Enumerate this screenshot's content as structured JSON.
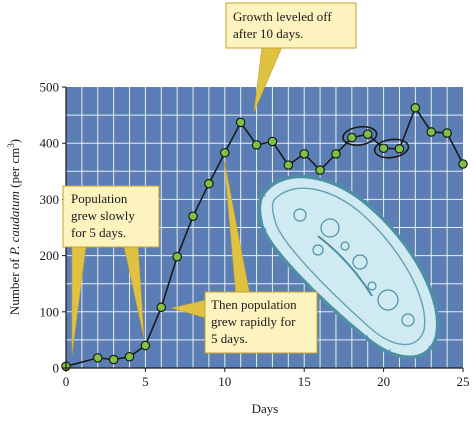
{
  "colors": {
    "plot_bg": "#5b7fb5",
    "grid": "#ffffff",
    "line": "#1a1a1a",
    "marker_fill": "#7ec242",
    "marker_stroke": "#1a1a1a",
    "callout_bg": "#fcf3bf",
    "callout_border": "#c8a22a",
    "callout_pointer": "#e0c243",
    "paramecium_body": "#cfeaf0",
    "paramecium_edge": "#4e8fa6"
  },
  "callouts": {
    "top": {
      "line1": "Growth leveled off",
      "line2": "after 10 days."
    },
    "left": {
      "line1": "Population",
      "line2": "grew slowly",
      "line3": "for 5 days."
    },
    "bottom": {
      "line1": "Then population",
      "line2": "grew rapidly for",
      "line3": "5 days."
    }
  },
  "chart_data": {
    "type": "line",
    "xlabel": "Days",
    "ylabel_main": "Number of ",
    "ylabel_species": "P. caudatum",
    "ylabel_unit": " (per cm",
    "ylabel_sup": "3",
    "ylabel_close": ")",
    "xlim": [
      0,
      25
    ],
    "ylim": [
      0,
      500
    ],
    "xticks": [
      "0",
      "5",
      "10",
      "15",
      "20",
      "25"
    ],
    "yticks": [
      "0",
      "100",
      "200",
      "300",
      "400",
      "500"
    ],
    "grid": true,
    "x": [
      0,
      2,
      3,
      4,
      5,
      6,
      7,
      8,
      9,
      10,
      11,
      12,
      13,
      14,
      15,
      16,
      17,
      18,
      19,
      20,
      21,
      22,
      23,
      24,
      25
    ],
    "y": [
      3,
      18,
      15,
      20,
      40,
      108,
      198,
      270,
      328,
      383,
      437,
      397,
      403,
      361,
      381,
      352,
      381,
      410,
      416,
      391,
      390,
      463,
      420,
      418,
      363
    ],
    "circled_groups": [
      [
        18,
        19
      ],
      [
        20,
        21
      ]
    ]
  }
}
